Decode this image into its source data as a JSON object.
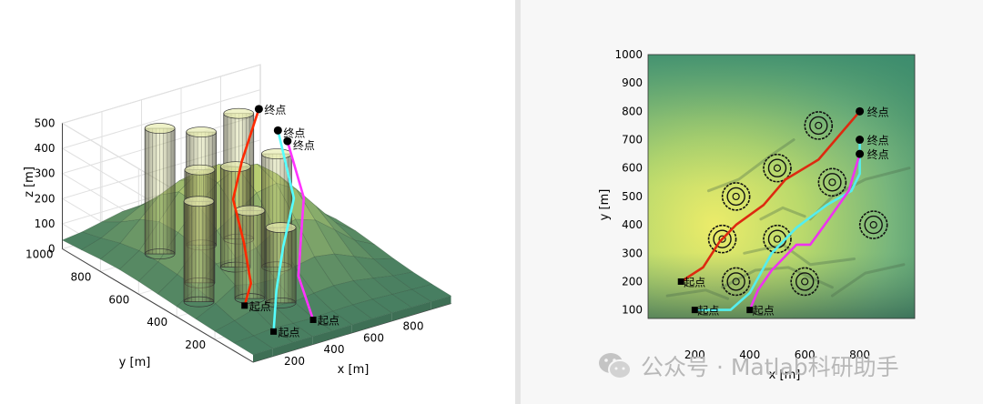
{
  "watermark": "公众号 · Matlab科研助手",
  "chart_data": [
    {
      "type": "surface3d",
      "xlabel": "x [m]",
      "ylabel": "y [m]",
      "zlabel": "z [m]",
      "xticks": [
        200,
        400,
        600,
        800
      ],
      "yticks": [
        200,
        400,
        600,
        800,
        1000
      ],
      "zticks": [
        0,
        100,
        200,
        300,
        400,
        500
      ],
      "xlim": [
        0,
        1000
      ],
      "ylim": [
        0,
        1000
      ],
      "zlim": [
        0,
        500
      ],
      "start_label": "起点",
      "end_label": "终点",
      "obstacles": [
        {
          "x": 300,
          "y": 800,
          "r": 55,
          "h": 500
        },
        {
          "x": 490,
          "y": 780,
          "r": 55,
          "h": 450
        },
        {
          "x": 650,
          "y": 750,
          "r": 55,
          "h": 500
        },
        {
          "x": 270,
          "y": 560,
          "r": 55,
          "h": 450
        },
        {
          "x": 480,
          "y": 590,
          "r": 55,
          "h": 400
        },
        {
          "x": 160,
          "y": 450,
          "r": 55,
          "h": 400
        },
        {
          "x": 620,
          "y": 520,
          "r": 55,
          "h": 450
        },
        {
          "x": 350,
          "y": 380,
          "r": 55,
          "h": 350
        },
        {
          "x": 430,
          "y": 300,
          "r": 55,
          "h": 300
        }
      ],
      "paths": [
        {
          "color": "#ff2a00",
          "points": [
            [
              150,
              200,
              100
            ],
            [
              240,
              260,
              140
            ],
            [
              320,
              380,
              230
            ],
            [
              400,
              520,
              320
            ],
            [
              560,
              640,
              380
            ],
            [
              800,
              800,
              460
            ]
          ],
          "start_label": "起点",
          "end_label": "终点"
        },
        {
          "color": "#55ffff",
          "points": [
            [
              200,
              100,
              30
            ],
            [
              330,
              220,
              110
            ],
            [
              470,
              330,
              200
            ],
            [
              640,
              450,
              300
            ],
            [
              800,
              700,
              420
            ]
          ],
          "start_label": "起点",
          "end_label": "终点"
        },
        {
          "color": "#ff33ff",
          "points": [
            [
              400,
              100,
              30
            ],
            [
              470,
              250,
              120
            ],
            [
              580,
              350,
              210
            ],
            [
              690,
              450,
              290
            ],
            [
              800,
              650,
              400
            ]
          ],
          "start_label": "起点",
          "end_label": "终点"
        }
      ]
    },
    {
      "type": "contour_map",
      "xlabel": "x [m]",
      "ylabel": "y [m]",
      "xticks": [
        200,
        400,
        600,
        800
      ],
      "yticks": [
        100,
        200,
        300,
        400,
        500,
        600,
        700,
        800,
        900,
        1000
      ],
      "xlim": [
        30,
        1000
      ],
      "ylim": [
        70,
        1000
      ],
      "obstacle_centers": [
        [
          650,
          750
        ],
        [
          500,
          600
        ],
        [
          350,
          500
        ],
        [
          700,
          550
        ],
        [
          300,
          350
        ],
        [
          500,
          350
        ],
        [
          850,
          400
        ],
        [
          350,
          200
        ],
        [
          600,
          200
        ]
      ],
      "paths": [
        {
          "color": "#dd2a10",
          "points": [
            [
              150,
              200
            ],
            [
              230,
              250
            ],
            [
              290,
              340
            ],
            [
              350,
              400
            ],
            [
              450,
              470
            ],
            [
              530,
              560
            ],
            [
              650,
              630
            ],
            [
              800,
              800
            ]
          ],
          "start_label": "起点",
          "end_label": "终点"
        },
        {
          "color": "#55eeee",
          "points": [
            [
              200,
              100
            ],
            [
              330,
              100
            ],
            [
              400,
              160
            ],
            [
              480,
              300
            ],
            [
              570,
              390
            ],
            [
              680,
              470
            ],
            [
              770,
              520
            ],
            [
              800,
              580
            ],
            [
              800,
              700
            ]
          ],
          "start_label": "起点",
          "end_label": "终点"
        },
        {
          "color": "#ee33ee",
          "points": [
            [
              400,
              100
            ],
            [
              430,
              170
            ],
            [
              480,
              240
            ],
            [
              570,
              330
            ],
            [
              620,
              330
            ],
            [
              680,
              410
            ],
            [
              760,
              520
            ],
            [
              800,
              650
            ]
          ],
          "start_label": "起点",
          "end_label": "终点"
        }
      ]
    }
  ]
}
